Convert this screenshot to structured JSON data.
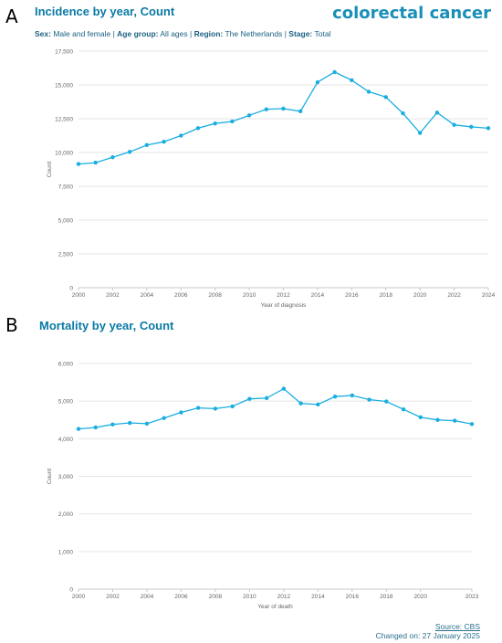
{
  "panels": {
    "a_letter": "A",
    "b_letter": "B",
    "brand": "colorectal cancer"
  },
  "filters": {
    "sex_label": "Sex:",
    "sex_value": "Male and female",
    "age_label": "Age group:",
    "age_value": "All ages",
    "region_label": "Region:",
    "region_value": "The Netherlands",
    "stage_label": "Stage:",
    "stage_value": "Total",
    "sep": "|"
  },
  "footer": {
    "source": "Source: CBS",
    "changed": "Changed on: 27 January 2025"
  },
  "colors": {
    "line": "#1aaee0",
    "title": "#0a7aa5",
    "grid": "#e6e6e6"
  },
  "chart_data": [
    {
      "type": "line",
      "title": "Incidence by year, Count",
      "xlabel": "Year of diagnosis",
      "ylabel": "Count",
      "ylim": [
        0,
        17500
      ],
      "yticks": [
        0,
        2500,
        5000,
        7500,
        10000,
        12500,
        15000,
        17500
      ],
      "ytick_labels": [
        "0",
        "2,500",
        "5,000",
        "7,500",
        "10,000",
        "12,500",
        "15,000",
        "17,500"
      ],
      "xlim": [
        2000,
        2024
      ],
      "xticks": [
        2000,
        2002,
        2004,
        2006,
        2008,
        2010,
        2012,
        2014,
        2016,
        2018,
        2020,
        2022,
        2024
      ],
      "x": [
        2000,
        2001,
        2002,
        2003,
        2004,
        2005,
        2006,
        2007,
        2008,
        2009,
        2010,
        2011,
        2012,
        2013,
        2014,
        2015,
        2016,
        2017,
        2018,
        2019,
        2020,
        2021,
        2022,
        2023,
        2024
      ],
      "series": [
        {
          "values": [
            9150,
            9250,
            9650,
            10050,
            10550,
            10800,
            11250,
            11800,
            12150,
            12300,
            12750,
            13200,
            13250,
            13050,
            15200,
            15950,
            15350,
            14500,
            14100,
            12900,
            11450,
            12950,
            12050,
            11900,
            11800
          ]
        }
      ],
      "grid": true
    },
    {
      "type": "line",
      "title": "Mortality by year, Count",
      "xlabel": "Year of death",
      "ylabel": "Count",
      "ylim": [
        0,
        6000
      ],
      "yticks": [
        0,
        1000,
        2000,
        3000,
        4000,
        5000,
        6000
      ],
      "ytick_labels": [
        "0",
        "1,000",
        "2,000",
        "3,000",
        "4,000",
        "5,000",
        "6,000"
      ],
      "xlim": [
        2000,
        2023
      ],
      "xticks": [
        2000,
        2002,
        2004,
        2006,
        2008,
        2010,
        2012,
        2014,
        2016,
        2018,
        2020,
        2023
      ],
      "x": [
        2000,
        2001,
        2002,
        2003,
        2004,
        2005,
        2006,
        2007,
        2008,
        2009,
        2010,
        2011,
        2012,
        2013,
        2014,
        2015,
        2016,
        2017,
        2018,
        2019,
        2020,
        2021,
        2022,
        2023
      ],
      "series": [
        {
          "values": [
            4260,
            4300,
            4380,
            4420,
            4400,
            4550,
            4700,
            4820,
            4800,
            4860,
            5060,
            5080,
            5330,
            4940,
            4910,
            5120,
            5150,
            5040,
            4990,
            4780,
            4570,
            4500,
            4480,
            4390
          ]
        }
      ],
      "grid": true
    }
  ]
}
